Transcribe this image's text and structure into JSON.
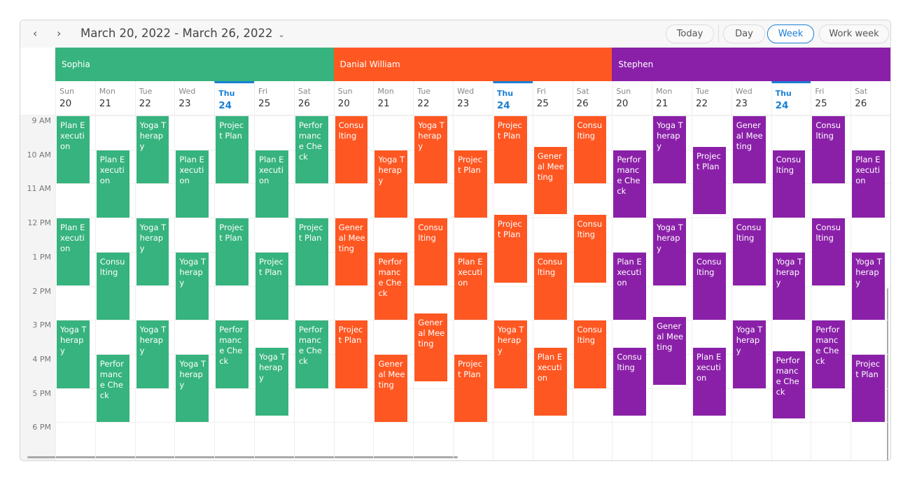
{
  "toolbar": {
    "prev_icon": "chevron-left",
    "next_icon": "chevron-right",
    "date_range": "March 20, 2022 - March 26, 2022",
    "dropdown_icon": "chevron-down",
    "buttons": {
      "today": "Today",
      "day": "Day",
      "week": "Week",
      "work_week": "Work week"
    },
    "active_view": "Week"
  },
  "days": [
    {
      "name": "Sun",
      "num": "20"
    },
    {
      "name": "Mon",
      "num": "21"
    },
    {
      "name": "Tue",
      "num": "22"
    },
    {
      "name": "Wed",
      "num": "23"
    },
    {
      "name": "Thu",
      "num": "24",
      "today": true
    },
    {
      "name": "Fri",
      "num": "25"
    },
    {
      "name": "Sat",
      "num": "26"
    }
  ],
  "time_labels": [
    "9 AM",
    "10 AM",
    "11 AM",
    "12 PM",
    "1 PM",
    "2 PM",
    "3 PM",
    "4 PM",
    "5 PM",
    "6 PM"
  ],
  "accent": "#1a7fd4",
  "resources": [
    {
      "name": "Sophia",
      "color": "#36b37e",
      "days": [
        [
          [
            "Plan Execution",
            9,
            11
          ],
          [
            "Plan Execution",
            12,
            14
          ],
          [
            "Yoga Therapy",
            15,
            17
          ]
        ],
        [
          [
            "Plan Execution",
            10,
            12
          ],
          [
            "Consulting",
            13,
            15
          ],
          [
            "Performance Check",
            16,
            18
          ]
        ],
        [
          [
            "Yoga Therapy",
            9,
            11
          ],
          [
            "Yoga Therapy",
            12,
            14
          ],
          [
            "Yoga Therapy",
            15,
            17
          ]
        ],
        [
          [
            "Plan Execution",
            10,
            12
          ],
          [
            "Yoga Therapy",
            13,
            15
          ],
          [
            "Yoga Therapy",
            16,
            18
          ]
        ],
        [
          [
            "Project Plan",
            9,
            11
          ],
          [
            "Project Plan",
            12,
            14
          ],
          [
            "Performance Check",
            15,
            17
          ]
        ],
        [
          [
            "Plan Execution",
            10,
            12
          ],
          [
            "Project Plan",
            13,
            15
          ],
          [
            "Yoga Therapy",
            15.8,
            17.8
          ]
        ],
        [
          [
            "Performance Check",
            9,
            11
          ],
          [
            "Project Plan",
            12,
            14
          ],
          [
            "Performance Check",
            15,
            17
          ]
        ]
      ]
    },
    {
      "name": "Danial William",
      "color": "#fe5722",
      "days": [
        [
          [
            "Consulting",
            9,
            11
          ],
          [
            "General Meeting",
            12,
            14
          ],
          [
            "Project Plan",
            15,
            17
          ]
        ],
        [
          [
            "Yoga Therapy",
            10,
            12
          ],
          [
            "Performance Check",
            13,
            15
          ],
          [
            "General Meeting",
            16,
            18
          ]
        ],
        [
          [
            "Yoga Therapy",
            9,
            11
          ],
          [
            "Consulting",
            12,
            14
          ],
          [
            "General Meeting",
            14.8,
            16.8
          ]
        ],
        [
          [
            "Project Plan",
            10,
            12
          ],
          [
            "Plan Execution",
            13,
            15
          ],
          [
            "Project Plan",
            16,
            18
          ]
        ],
        [
          [
            "Project Plan",
            9,
            11
          ],
          [
            "Project Plan",
            11.9,
            13.9
          ],
          [
            "Yoga Therapy",
            15,
            17
          ]
        ],
        [
          [
            "General Meeting",
            9.9,
            11.9
          ],
          [
            "Consulting",
            13,
            15
          ],
          [
            "Plan Execution",
            15.8,
            17.8
          ]
        ],
        [
          [
            "Consulting",
            9,
            11
          ],
          [
            "Consulting",
            11.9,
            13.9
          ],
          [
            "Consulting",
            15,
            17
          ]
        ]
      ]
    },
    {
      "name": "Stephen",
      "color": "#8a20a8",
      "days": [
        [
          [
            "Performance Check",
            10,
            12
          ],
          [
            "Plan Execution",
            13,
            15
          ],
          [
            "Consulting",
            15.8,
            17.8
          ]
        ],
        [
          [
            "Yoga Therapy",
            9,
            11
          ],
          [
            "Yoga Therapy",
            12,
            14
          ],
          [
            "General Meeting",
            14.9,
            16.9
          ]
        ],
        [
          [
            "Project Plan",
            9.9,
            11.9
          ],
          [
            "Consulting",
            13,
            15
          ],
          [
            "Plan Execution",
            15.8,
            17.8
          ]
        ],
        [
          [
            "General Meeting",
            9,
            11
          ],
          [
            "Consulting",
            12,
            14
          ],
          [
            "Yoga Therapy",
            15,
            17
          ]
        ],
        [
          [
            "Consulting",
            10,
            12
          ],
          [
            "Yoga Therapy",
            13,
            15
          ],
          [
            "Performance Check",
            15.9,
            17.9
          ]
        ],
        [
          [
            "Consulting",
            9,
            11
          ],
          [
            "Consulting",
            12,
            14
          ],
          [
            "Performance Check",
            15,
            17
          ]
        ],
        [
          [
            "Plan Execution",
            10,
            12
          ],
          [
            "Yoga Therapy",
            13,
            15
          ],
          [
            "Project Plan",
            16,
            18
          ]
        ]
      ]
    }
  ]
}
